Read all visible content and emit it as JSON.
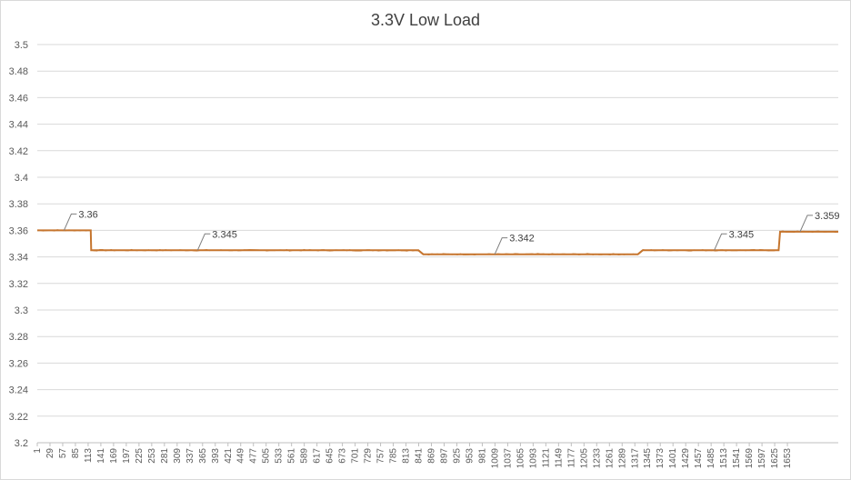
{
  "chart_data": {
    "type": "line",
    "title": "3.3V Low Load",
    "xlabel": "",
    "ylabel": "",
    "ylim": [
      3.2,
      3.5
    ],
    "y_ticks": [
      "3.5",
      "3.48",
      "3.46",
      "3.44",
      "3.42",
      "3.4",
      "3.38",
      "3.36",
      "3.34",
      "3.32",
      "3.3",
      "3.28",
      "3.26",
      "3.24",
      "3.22",
      "3.2"
    ],
    "x_tick_labels": [
      "1",
      "29",
      "57",
      "85",
      "113",
      "141",
      "169",
      "197",
      "225",
      "253",
      "281",
      "309",
      "337",
      "365",
      "393",
      "421",
      "449",
      "477",
      "505",
      "533",
      "561",
      "589",
      "617",
      "645",
      "673",
      "701",
      "729",
      "757",
      "785",
      "813",
      "841",
      "869",
      "897",
      "925",
      "953",
      "981",
      "1009",
      "1037",
      "1065",
      "1093",
      "1121",
      "1149",
      "1177",
      "1205",
      "1233",
      "1261",
      "1289",
      "1317",
      "1345",
      "1373",
      "1401",
      "1429",
      "1457",
      "1485",
      "1513",
      "1541",
      "1569",
      "1597",
      "1625",
      "1653"
    ],
    "x_range": [
      1,
      1680
    ],
    "grid": true,
    "legend": "none",
    "line_color": "#c5752e",
    "series": [
      {
        "points": [
          [
            1,
            3.36
          ],
          [
            113,
            3.36
          ],
          [
            114,
            3.345
          ],
          [
            350,
            3.345
          ],
          [
            500,
            3.345
          ],
          [
            800,
            3.345
          ],
          [
            810,
            3.342
          ],
          [
            960,
            3.342
          ],
          [
            1100,
            3.342
          ],
          [
            1260,
            3.342
          ],
          [
            1270,
            3.345
          ],
          [
            1420,
            3.345
          ],
          [
            1555,
            3.345
          ],
          [
            1558,
            3.359
          ],
          [
            1620,
            3.359
          ],
          [
            1680,
            3.359
          ]
        ]
      }
    ],
    "annotations": [
      {
        "text": "3.36",
        "x": 57,
        "y": 3.36
      },
      {
        "text": "3.345",
        "x": 337,
        "y": 3.345
      },
      {
        "text": "3.342",
        "x": 960,
        "y": 3.342
      },
      {
        "text": "3.345",
        "x": 1420,
        "y": 3.345
      },
      {
        "text": "3.359",
        "x": 1600,
        "y": 3.359
      }
    ]
  }
}
